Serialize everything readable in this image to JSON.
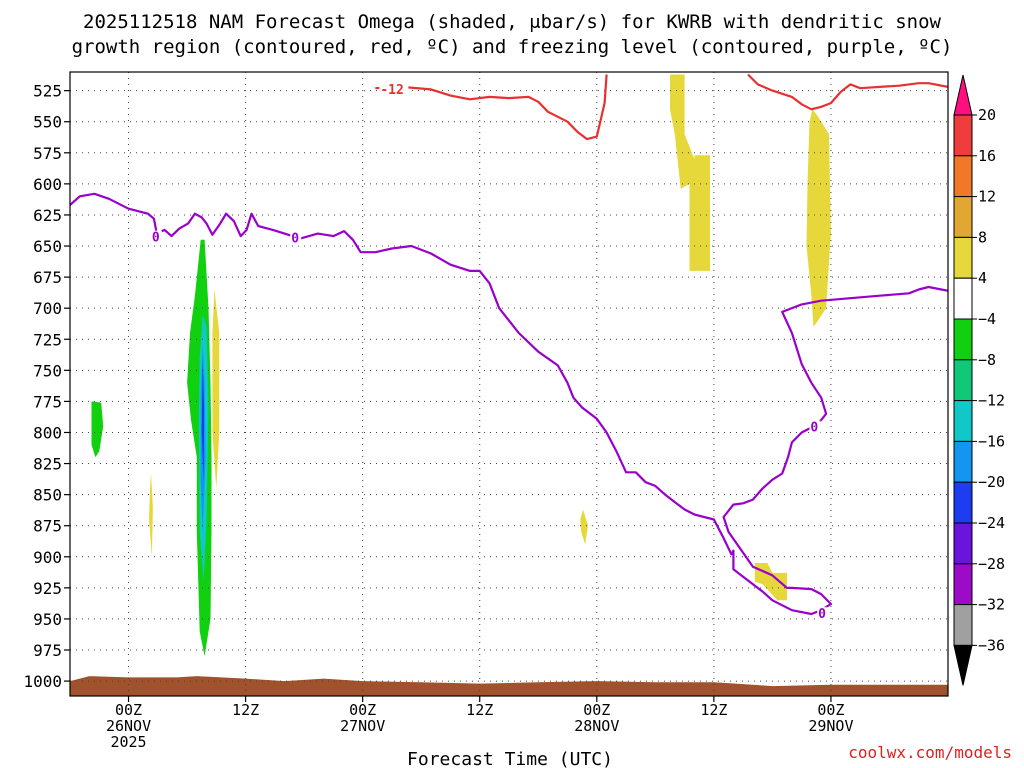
{
  "chart_data": {
    "type": "heatmap",
    "title_line1": "2025112518 NAM Forecast Omega (shaded, μbar/s) for KWRB with dendritic snow",
    "title_line2": "growth region (contoured, red, ºC) and freezing level (contoured, purple, ºC)",
    "xlabel": "Forecast Time (UTC)",
    "credit": "coolwx.com/models",
    "x_range_hours": [
      -6,
      84
    ],
    "y_range_mb": [
      510,
      1012
    ],
    "y_ticks": [
      525,
      550,
      575,
      600,
      625,
      650,
      675,
      700,
      725,
      750,
      775,
      800,
      825,
      850,
      875,
      900,
      925,
      950,
      975,
      1000
    ],
    "x_ticks": [
      {
        "hour": 0,
        "line1": "00Z",
        "line2": "26NOV",
        "line3": "2025"
      },
      {
        "hour": 12,
        "line1": "12Z",
        "line2": "",
        "line3": ""
      },
      {
        "hour": 24,
        "line1": "00Z",
        "line2": "27NOV",
        "line3": ""
      },
      {
        "hour": 36,
        "line1": "12Z",
        "line2": "",
        "line3": ""
      },
      {
        "hour": 48,
        "line1": "00Z",
        "line2": "28NOV",
        "line3": ""
      },
      {
        "hour": 60,
        "line1": "12Z",
        "line2": "",
        "line3": ""
      },
      {
        "hour": 72,
        "line1": "00Z",
        "line2": "29NOV",
        "line3": ""
      }
    ],
    "colorbar": {
      "labels": [
        "20",
        "16",
        "12",
        "8",
        "4",
        "−4",
        "−8",
        "−12",
        "−16",
        "−20",
        "−24",
        "−28",
        "−32",
        "−36"
      ],
      "colors_top_to_bottom": [
        "#ff0f80",
        "#f03c3c",
        "#f07828",
        "#e0a830",
        "#e6d83a",
        "#ffffff",
        "#10d010",
        "#10c878",
        "#10c8c8",
        "#1496f0",
        "#1e3cf0",
        "#6a14dc",
        "#9c0cc8",
        "#a0a0a0",
        "#000000"
      ]
    },
    "series": [
      {
        "color": "#e83030",
        "label": "-12",
        "points": [
          [
            25.3,
            523
          ],
          [
            28,
            522
          ],
          [
            31,
            524
          ],
          [
            33,
            529
          ],
          [
            35,
            532
          ],
          [
            37,
            530
          ],
          [
            39,
            531
          ],
          [
            41,
            530
          ],
          [
            42,
            534
          ],
          [
            43,
            542
          ],
          [
            45,
            550
          ],
          [
            46,
            558
          ],
          [
            47,
            564
          ],
          [
            48,
            562
          ],
          [
            48.8,
            535
          ],
          [
            49,
            512
          ]
        ]
      },
      {
        "color": "#e83030",
        "label": "",
        "points": [
          [
            63.5,
            512
          ],
          [
            64.5,
            520
          ],
          [
            66,
            525
          ],
          [
            68,
            530
          ],
          [
            69,
            536
          ],
          [
            70,
            540
          ],
          [
            71,
            538
          ],
          [
            72,
            535
          ],
          [
            73,
            526
          ],
          [
            74,
            520
          ],
          [
            75,
            523
          ],
          [
            77,
            522
          ],
          [
            79,
            521
          ],
          [
            81,
            519
          ],
          [
            82,
            519
          ],
          [
            84,
            522
          ]
        ]
      },
      {
        "color": "#9900cc",
        "label": "0",
        "points": [
          [
            -6,
            617
          ],
          [
            -5,
            610
          ],
          [
            -3.5,
            608
          ],
          [
            -2,
            612
          ],
          [
            0,
            620
          ],
          [
            2,
            624
          ],
          [
            2.6,
            628
          ],
          [
            2.9,
            640
          ],
          [
            3.7,
            637
          ],
          [
            4.4,
            642
          ],
          [
            5.2,
            636
          ],
          [
            6.1,
            632
          ],
          [
            6.8,
            624
          ],
          [
            7.5,
            627
          ],
          [
            8,
            632
          ],
          [
            8.6,
            641
          ],
          [
            9.3,
            633
          ],
          [
            10,
            624
          ],
          [
            10.8,
            630
          ],
          [
            11.5,
            642
          ],
          [
            12.1,
            637
          ],
          [
            12.6,
            624
          ],
          [
            13.3,
            634
          ],
          [
            14.8,
            637
          ],
          [
            16,
            640
          ],
          [
            17.6,
            644
          ],
          [
            19.4,
            640
          ],
          [
            21,
            642
          ],
          [
            22.1,
            638
          ],
          [
            23,
            645
          ],
          [
            23.8,
            655
          ],
          [
            25.3,
            655
          ],
          [
            27,
            652
          ],
          [
            29,
            650
          ],
          [
            31,
            656
          ],
          [
            33,
            665
          ],
          [
            35,
            670
          ],
          [
            36,
            670
          ],
          [
            37,
            680
          ],
          [
            38,
            700
          ],
          [
            40,
            720
          ],
          [
            42,
            735
          ],
          [
            44,
            746
          ],
          [
            45,
            760
          ],
          [
            45.6,
            772
          ],
          [
            46.5,
            780
          ],
          [
            48,
            789
          ],
          [
            49,
            800
          ],
          [
            50,
            815
          ],
          [
            51,
            832
          ],
          [
            52,
            832
          ],
          [
            53,
            840
          ],
          [
            54,
            843
          ],
          [
            55,
            850
          ],
          [
            56,
            856
          ],
          [
            57,
            862
          ],
          [
            58,
            866
          ],
          [
            59,
            868
          ],
          [
            60,
            870
          ],
          [
            61,
            885
          ],
          [
            61.8,
            898
          ],
          [
            62,
            895
          ],
          [
            62,
            910
          ],
          [
            63,
            916
          ],
          [
            65,
            928
          ],
          [
            66,
            935
          ],
          [
            68,
            943
          ],
          [
            70,
            946
          ],
          [
            71,
            943
          ],
          [
            72,
            938
          ],
          [
            71,
            930
          ],
          [
            70,
            926
          ],
          [
            68,
            925
          ],
          [
            67.5,
            925
          ],
          [
            66,
            915
          ],
          [
            64,
            908
          ],
          [
            61.5,
            880
          ],
          [
            61,
            868
          ],
          [
            62,
            858
          ],
          [
            63,
            857
          ],
          [
            64,
            854
          ],
          [
            65,
            845
          ],
          [
            66,
            838
          ],
          [
            67,
            833
          ],
          [
            67.6,
            820
          ],
          [
            68,
            808
          ],
          [
            69,
            800
          ],
          [
            70,
            796
          ],
          [
            71,
            790
          ],
          [
            71.5,
            785
          ],
          [
            71,
            772
          ],
          [
            70,
            760
          ],
          [
            69,
            745
          ],
          [
            68,
            720
          ],
          [
            67,
            703
          ],
          [
            69,
            697
          ],
          [
            71,
            694
          ],
          [
            74,
            692
          ],
          [
            77,
            690
          ],
          [
            80,
            688
          ],
          [
            81,
            685
          ],
          [
            82,
            683
          ],
          [
            84,
            686
          ]
        ]
      }
    ],
    "omega_regions": [
      {
        "color": "#10d010",
        "points": [
          [
            -3.8,
            775
          ],
          [
            -2.8,
            776
          ],
          [
            -2.6,
            795
          ],
          [
            -3.0,
            815
          ],
          [
            -3.4,
            820
          ],
          [
            -3.8,
            810
          ]
        ]
      },
      {
        "color": "#10d010",
        "points": [
          [
            7.4,
            645
          ],
          [
            7.8,
            645
          ],
          [
            8.2,
            700
          ],
          [
            8.4,
            760
          ],
          [
            8.5,
            820
          ],
          [
            8.5,
            880
          ],
          [
            8.4,
            950
          ],
          [
            7.8,
            980
          ],
          [
            7.3,
            960
          ],
          [
            7.0,
            880
          ],
          [
            7.0,
            820
          ],
          [
            6.4,
            790
          ],
          [
            6.0,
            760
          ],
          [
            6.3,
            720
          ],
          [
            6.8,
            690
          ]
        ]
      },
      {
        "color": "#10c8c8",
        "points": [
          [
            7.6,
            705
          ],
          [
            8.0,
            715
          ],
          [
            8.2,
            780
          ],
          [
            8.0,
            870
          ],
          [
            7.7,
            920
          ],
          [
            7.3,
            880
          ],
          [
            7.2,
            790
          ],
          [
            7.3,
            740
          ]
        ]
      },
      {
        "color": "#1496f0",
        "points": [
          [
            7.6,
            730
          ],
          [
            7.8,
            760
          ],
          [
            7.9,
            820
          ],
          [
            7.6,
            880
          ],
          [
            7.4,
            840
          ],
          [
            7.4,
            770
          ]
        ]
      },
      {
        "color": "#1e3cf0",
        "points": [
          [
            7.6,
            740
          ],
          [
            7.75,
            780
          ],
          [
            7.7,
            840
          ],
          [
            7.5,
            800
          ]
        ]
      },
      {
        "color": "#e6d83a",
        "points": [
          [
            2.3,
            833
          ],
          [
            2.5,
            860
          ],
          [
            2.4,
            900
          ],
          [
            2.1,
            870
          ],
          [
            2.2,
            845
          ]
        ]
      },
      {
        "color": "#e6d83a",
        "points": [
          [
            8.8,
            685
          ],
          [
            9.3,
            720
          ],
          [
            9.3,
            800
          ],
          [
            9.0,
            845
          ],
          [
            8.6,
            800
          ],
          [
            8.6,
            720
          ]
        ]
      },
      {
        "color": "#e6d83a",
        "points": [
          [
            46.6,
            862
          ],
          [
            47.1,
            875
          ],
          [
            46.8,
            890
          ],
          [
            46.4,
            880
          ],
          [
            46.3,
            870
          ]
        ]
      },
      {
        "color": "#e6d83a",
        "points": [
          [
            55.5,
            512
          ],
          [
            57.0,
            512
          ],
          [
            57.0,
            560
          ],
          [
            58.0,
            580
          ],
          [
            58.0,
            577
          ],
          [
            59.6,
            577
          ],
          [
            59.6,
            670
          ],
          [
            57.5,
            670
          ],
          [
            57.5,
            600
          ],
          [
            56.6,
            604
          ],
          [
            56.0,
            560
          ],
          [
            55.5,
            540
          ]
        ]
      },
      {
        "color": "#e6d83a",
        "points": [
          [
            70.1,
            540
          ],
          [
            70.6,
            545
          ],
          [
            71.8,
            560
          ],
          [
            72.0,
            640
          ],
          [
            71.5,
            700
          ],
          [
            70.5,
            712
          ],
          [
            70.2,
            715
          ],
          [
            70.0,
            690
          ],
          [
            69.5,
            650
          ],
          [
            69.6,
            600
          ],
          [
            69.8,
            550
          ]
        ]
      },
      {
        "color": "#e6d83a",
        "points": [
          [
            64.2,
            905
          ],
          [
            65.5,
            905
          ],
          [
            66,
            913
          ],
          [
            67.5,
            913
          ],
          [
            67.5,
            935
          ],
          [
            66.5,
            935
          ],
          [
            65,
            922
          ],
          [
            64.2,
            920
          ]
        ]
      }
    ],
    "surface_terrain": {
      "color": "#a0522d",
      "points": [
        [
          -6,
          1000
        ],
        [
          -4,
          996
        ],
        [
          0,
          997
        ],
        [
          5,
          997
        ],
        [
          7,
          996
        ],
        [
          12,
          998
        ],
        [
          16,
          1000
        ],
        [
          20,
          998
        ],
        [
          24,
          1000
        ],
        [
          30,
          1001
        ],
        [
          36,
          1002
        ],
        [
          42,
          1001
        ],
        [
          48,
          1000
        ],
        [
          54,
          1001
        ],
        [
          60,
          1001
        ],
        [
          64,
          1003
        ],
        [
          66,
          1004
        ],
        [
          72,
          1003
        ],
        [
          78,
          1003
        ],
        [
          84,
          1003
        ]
      ]
    }
  }
}
